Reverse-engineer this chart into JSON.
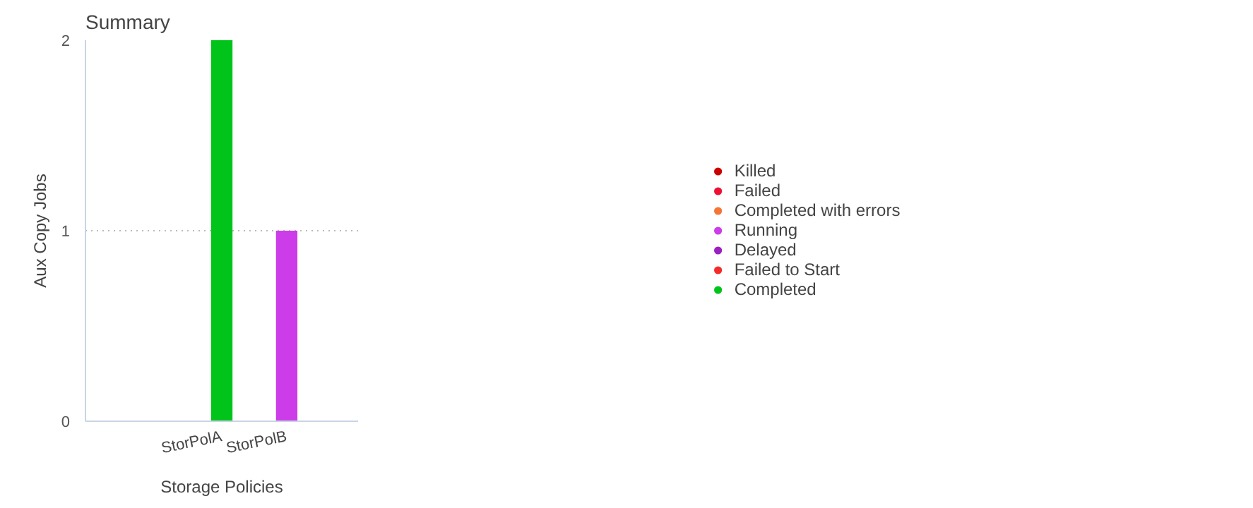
{
  "chart_data": {
    "type": "bar",
    "title": "Summary",
    "xlabel": "Storage Policies",
    "ylabel": "Aux Copy Jobs",
    "categories": [
      "StorPolA",
      "StorPolB"
    ],
    "series": [
      {
        "name": "Killed",
        "color": "#cc0000",
        "values": [
          null,
          null
        ]
      },
      {
        "name": "Failed",
        "color": "#ee1133",
        "values": [
          null,
          null
        ]
      },
      {
        "name": "Completed with errors",
        "color": "#f47535",
        "values": [
          null,
          null
        ]
      },
      {
        "name": "Running",
        "color": "#cc3ce8",
        "values": [
          null,
          1
        ]
      },
      {
        "name": "Delayed",
        "color": "#9b20c0",
        "values": [
          null,
          null
        ]
      },
      {
        "name": "Failed to Start",
        "color": "#f42b2b",
        "values": [
          null,
          null
        ]
      },
      {
        "name": "Completed",
        "color": "#00c41a",
        "values": [
          2,
          null
        ]
      }
    ],
    "ylim": [
      0,
      2
    ],
    "yticks": [
      0,
      1,
      2
    ],
    "grid": "y",
    "legend": "right"
  }
}
